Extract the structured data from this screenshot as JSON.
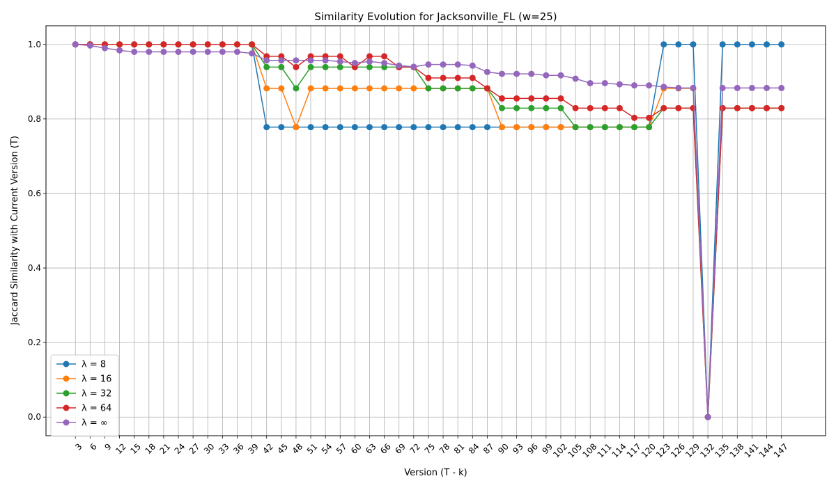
{
  "chart_data": {
    "type": "line",
    "title": "Similarity Evolution for Jacksonville_FL (w=25)",
    "xlabel": "Version (T - k)",
    "ylabel": "Jaccard Similarity with Current Version (T)",
    "ylim": [
      -0.05,
      1.05
    ],
    "yticks": [
      0.0,
      0.2,
      0.4,
      0.6,
      0.8,
      1.0
    ],
    "ytick_labels": [
      "0.0",
      "0.2",
      "0.4",
      "0.6",
      "0.8",
      "1.0"
    ],
    "grid": true,
    "legend_position": "lower-left",
    "x": [
      3,
      6,
      9,
      12,
      15,
      18,
      21,
      24,
      27,
      30,
      33,
      36,
      39,
      42,
      45,
      48,
      51,
      54,
      57,
      60,
      63,
      66,
      69,
      72,
      75,
      78,
      81,
      84,
      87,
      90,
      93,
      96,
      99,
      102,
      105,
      108,
      111,
      114,
      117,
      120,
      123,
      126,
      129,
      132,
      135,
      138,
      141,
      144,
      147
    ],
    "x_labels": [
      "3",
      "6",
      "9",
      "12",
      "15",
      "18",
      "21",
      "24",
      "27",
      "30",
      "33",
      "36",
      "39",
      "42",
      "45",
      "48",
      "51",
      "54",
      "57",
      "60",
      "63",
      "66",
      "69",
      "72",
      "75",
      "78",
      "81",
      "84",
      "87",
      "90",
      "93",
      "96",
      "99",
      "102",
      "105",
      "108",
      "111",
      "114",
      "117",
      "120",
      "123",
      "126",
      "129",
      "132",
      "135",
      "138",
      "141",
      "144",
      "147"
    ],
    "series": [
      {
        "name": "λ = 8",
        "color": "#1f77b4",
        "values": [
          1,
          1,
          1,
          1,
          1,
          1,
          1,
          1,
          1,
          1,
          1,
          1,
          1,
          0.778,
          0.778,
          0.778,
          0.778,
          0.778,
          0.778,
          0.778,
          0.778,
          0.778,
          0.778,
          0.778,
          0.778,
          0.778,
          0.778,
          0.778,
          0.778,
          0.778,
          0.778,
          0.778,
          0.778,
          0.778,
          0.778,
          0.778,
          0.778,
          0.778,
          0.778,
          0.778,
          1,
          1,
          1,
          0,
          1,
          1,
          1,
          1,
          1
        ]
      },
      {
        "name": "λ = 16",
        "color": "#ff7f0e",
        "values": [
          1,
          1,
          1,
          1,
          1,
          1,
          1,
          1,
          1,
          1,
          1,
          1,
          1,
          0.882,
          0.882,
          0.778,
          0.882,
          0.882,
          0.882,
          0.882,
          0.882,
          0.882,
          0.882,
          0.882,
          0.882,
          0.882,
          0.882,
          0.882,
          0.882,
          0.778,
          0.778,
          0.778,
          0.778,
          0.778,
          0.778,
          0.778,
          0.778,
          0.778,
          0.778,
          0.778,
          0.882,
          0.882,
          0.882,
          0,
          0.829,
          0.829,
          0.829,
          0.829,
          0.829
        ]
      },
      {
        "name": "λ = 32",
        "color": "#2ca02c",
        "values": [
          1,
          1,
          1,
          1,
          1,
          1,
          1,
          1,
          1,
          1,
          1,
          1,
          1,
          0.939,
          0.939,
          0.882,
          0.939,
          0.939,
          0.939,
          0.939,
          0.939,
          0.939,
          0.939,
          0.939,
          0.882,
          0.882,
          0.882,
          0.882,
          0.882,
          0.829,
          0.829,
          0.829,
          0.829,
          0.829,
          0.778,
          0.778,
          0.778,
          0.778,
          0.778,
          0.778,
          0.829,
          0.829,
          0.829,
          0,
          0.829,
          0.829,
          0.829,
          0.829,
          0.829
        ]
      },
      {
        "name": "λ = 64",
        "color": "#d62728",
        "values": [
          1,
          1,
          1,
          1,
          1,
          1,
          1,
          1,
          1,
          1,
          1,
          1,
          1,
          0.968,
          0.968,
          0.939,
          0.968,
          0.968,
          0.968,
          0.939,
          0.968,
          0.968,
          0.939,
          0.939,
          0.91,
          0.91,
          0.91,
          0.91,
          0.882,
          0.855,
          0.855,
          0.855,
          0.855,
          0.855,
          0.829,
          0.829,
          0.829,
          0.829,
          0.803,
          0.803,
          0.829,
          0.829,
          0.829,
          0,
          0.829,
          0.829,
          0.829,
          0.829,
          0.829
        ]
      },
      {
        "name": "λ = ∞",
        "color": "#9467bd",
        "values": [
          1,
          0.997,
          0.99,
          0.984,
          0.98,
          0.98,
          0.98,
          0.98,
          0.98,
          0.98,
          0.98,
          0.98,
          0.976,
          0.957,
          0.957,
          0.957,
          0.957,
          0.957,
          0.954,
          0.95,
          0.954,
          0.95,
          0.943,
          0.94,
          0.946,
          0.946,
          0.946,
          0.943,
          0.926,
          0.921,
          0.921,
          0.921,
          0.917,
          0.917,
          0.908,
          0.896,
          0.896,
          0.893,
          0.89,
          0.89,
          0.886,
          0.883,
          0.883,
          0,
          0.883,
          0.883,
          0.883,
          0.883,
          0.883
        ]
      }
    ]
  }
}
